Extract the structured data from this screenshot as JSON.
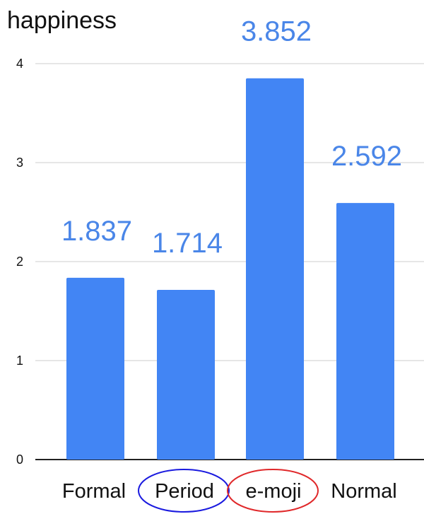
{
  "chart_data": {
    "type": "bar",
    "ylabel": "happiness",
    "categories": [
      "Formal",
      "Period",
      "e-moji",
      "Normal"
    ],
    "values": [
      1.837,
      1.714,
      3.852,
      2.592
    ],
    "data_labels": [
      "1.837",
      "1.714",
      "3.852",
      "2.592"
    ],
    "yticks": [
      "0",
      "1",
      "2",
      "3",
      "4"
    ],
    "ylim": [
      0,
      4
    ],
    "grid": true,
    "legend": "none",
    "annotations": [
      {
        "category": "Period",
        "shape": "ellipse",
        "color": "#1a1adf"
      },
      {
        "category": "e-moji",
        "shape": "ellipse",
        "color": "#e0282a"
      }
    ]
  },
  "colors": {
    "bar": "#4285f4",
    "data_label": "#4a86e8",
    "grid": "#cccccc",
    "axis": "#222222"
  }
}
